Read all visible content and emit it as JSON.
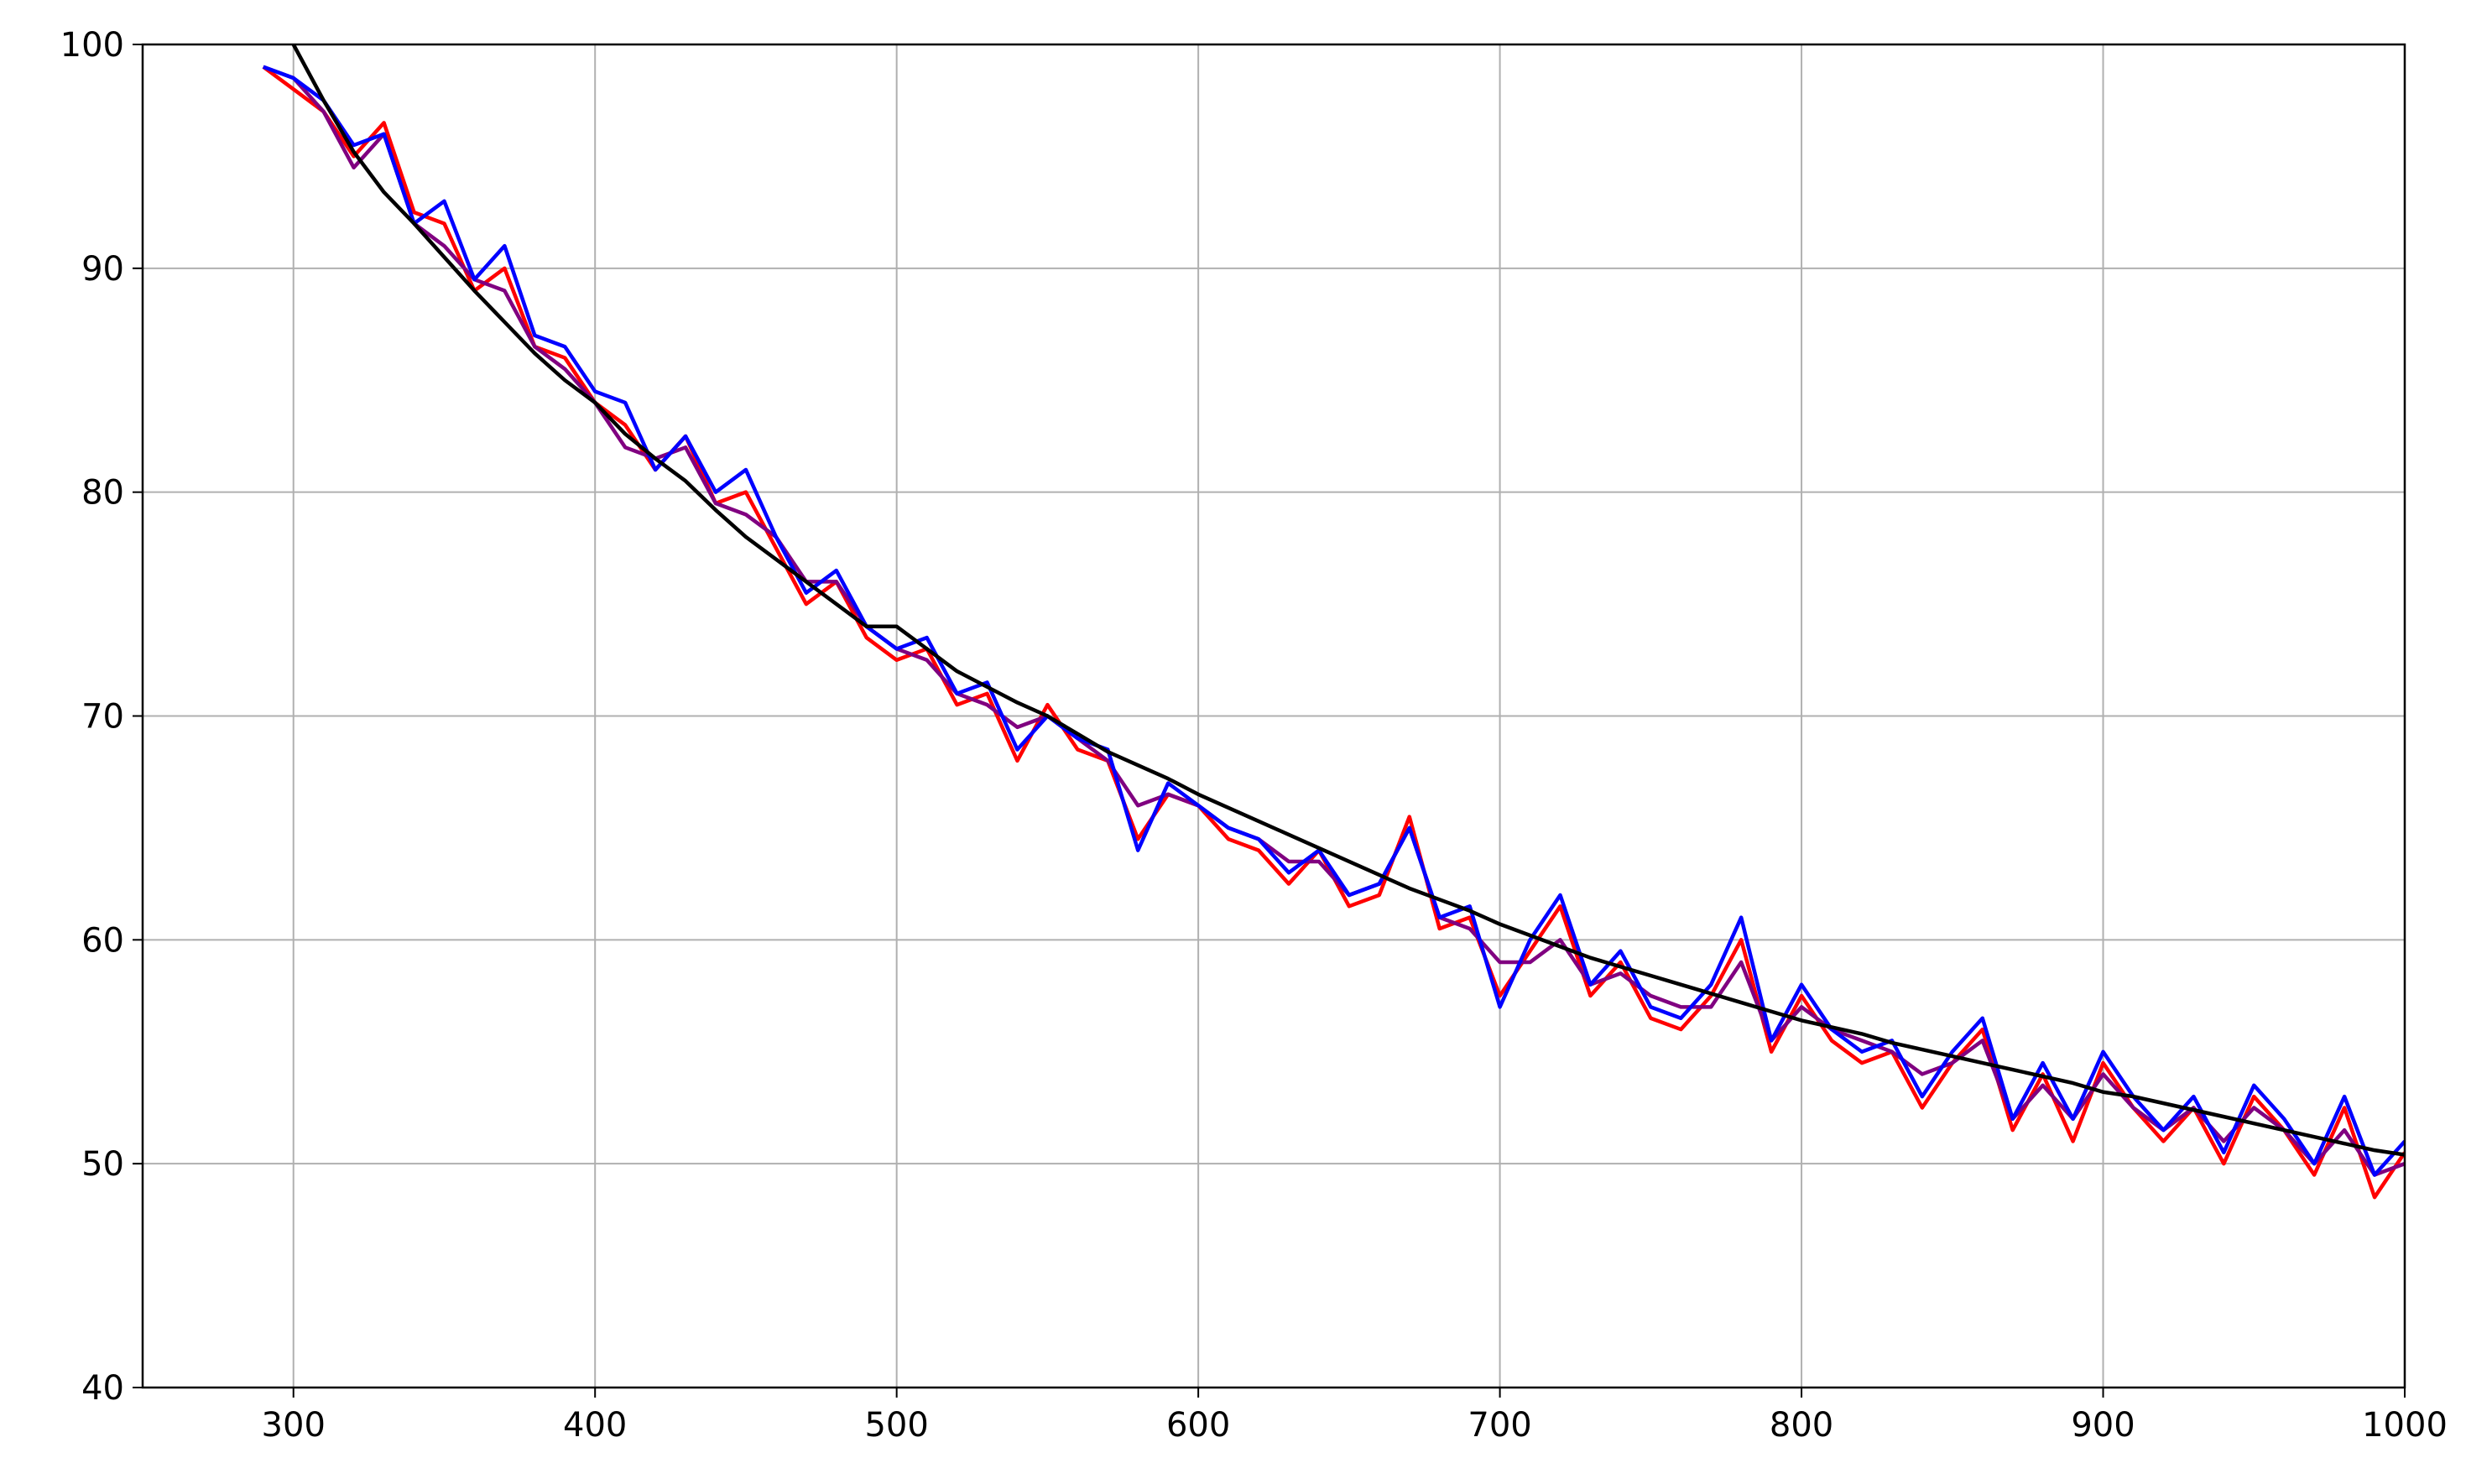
{
  "chart_data": {
    "type": "line",
    "x": [
      290,
      300,
      310,
      320,
      330,
      340,
      350,
      360,
      370,
      380,
      390,
      400,
      410,
      420,
      430,
      440,
      450,
      460,
      470,
      480,
      490,
      500,
      510,
      520,
      530,
      540,
      550,
      560,
      570,
      580,
      590,
      600,
      610,
      620,
      630,
      640,
      650,
      660,
      670,
      680,
      690,
      700,
      710,
      720,
      730,
      740,
      750,
      760,
      770,
      780,
      790,
      800,
      810,
      820,
      830,
      840,
      850,
      860,
      870,
      880,
      890,
      900,
      910,
      920,
      930,
      940,
      950,
      960,
      970,
      980,
      990,
      1000
    ],
    "series": [
      {
        "color": "#ff0000",
        "values": [
          99,
          98,
          97,
          95,
          96.5,
          92.5,
          92,
          89,
          90,
          86.5,
          86,
          84,
          83,
          81,
          82.5,
          79.5,
          80,
          77.5,
          75,
          76,
          73.5,
          72.5,
          73,
          70.5,
          71,
          68,
          70.5,
          68.5,
          68,
          64.5,
          66.5,
          66,
          64.5,
          64,
          62.5,
          64,
          61.5,
          62,
          65.5,
          60.5,
          61,
          57.5,
          59.5,
          61.5,
          57.5,
          59,
          56.5,
          56,
          57.5,
          60,
          55,
          57.5,
          55.5,
          54.5,
          55,
          52.5,
          54.5,
          56,
          51.5,
          54,
          51,
          54.5,
          52.5,
          51,
          52.5,
          50,
          53,
          51.5,
          49.5,
          52.5,
          48.5,
          50.5
        ]
      },
      {
        "color": "#800080",
        "values": [
          99,
          98.5,
          97,
          94.5,
          96,
          92,
          91,
          89.5,
          89,
          86.5,
          85.5,
          84,
          82,
          81.5,
          82,
          79.5,
          79,
          78,
          76,
          76,
          74,
          73,
          72.5,
          71,
          70.5,
          69.5,
          70,
          69,
          68,
          66,
          66.5,
          66,
          65,
          64.5,
          63.5,
          63.5,
          62,
          62.5,
          65,
          61,
          60.5,
          59,
          59,
          60,
          58,
          58.5,
          57.5,
          57,
          57,
          59,
          55.5,
          57,
          56,
          55.5,
          55,
          54,
          54.5,
          55.5,
          52,
          53.5,
          52,
          54,
          52.5,
          51.5,
          52.5,
          51,
          52.5,
          51.5,
          50,
          51.5,
          49.5,
          50
        ]
      },
      {
        "color": "#0000ff",
        "values": [
          99,
          98.5,
          97.5,
          95.5,
          96,
          92,
          93,
          89.5,
          91,
          87,
          86.5,
          84.5,
          84,
          81,
          82.5,
          80,
          81,
          78,
          75.5,
          76.5,
          74,
          73,
          73.5,
          71,
          71.5,
          68.5,
          70,
          69,
          68.5,
          64,
          67,
          66,
          65,
          64.5,
          63,
          64,
          62,
          62.5,
          65,
          61,
          61.5,
          57,
          60,
          62,
          58,
          59.5,
          57,
          56.5,
          58,
          61,
          55.5,
          58,
          56,
          55,
          55.5,
          53,
          55,
          56.5,
          52,
          54.5,
          52,
          55,
          53,
          51.5,
          53,
          50.5,
          53.5,
          52,
          50,
          53,
          49.5,
          51
        ]
      },
      {
        "color": "#000000",
        "values": [
          null,
          100,
          97.5,
          95.2,
          93.4,
          92,
          90.5,
          89,
          87.6,
          86.2,
          85,
          84,
          82.6,
          81.5,
          80.5,
          79.2,
          78,
          77,
          76,
          75,
          74,
          74,
          73,
          72,
          71.3,
          70.6,
          70,
          69.2,
          68.4,
          67.8,
          67.2,
          66.5,
          65.9,
          65.3,
          64.7,
          64.1,
          63.5,
          62.9,
          62.3,
          61.8,
          61.3,
          60.7,
          60.2,
          59.7,
          59.2,
          58.8,
          58.4,
          58,
          57.6,
          57.2,
          56.8,
          56.4,
          56.1,
          55.8,
          55.4,
          55.1,
          54.8,
          54.5,
          54.2,
          53.9,
          53.6,
          53.2,
          53,
          52.7,
          52.4,
          52.1,
          51.8,
          51.5,
          51.2,
          50.9,
          50.6,
          50.4
        ]
      }
    ],
    "xlim": [
      250,
      1000
    ],
    "xticks": [
      300,
      400,
      500,
      600,
      700,
      800,
      900,
      1000
    ],
    "ylim": [
      40,
      100
    ],
    "yticks": [
      40,
      50,
      60,
      70,
      80,
      90,
      100
    ],
    "grid": true
  }
}
